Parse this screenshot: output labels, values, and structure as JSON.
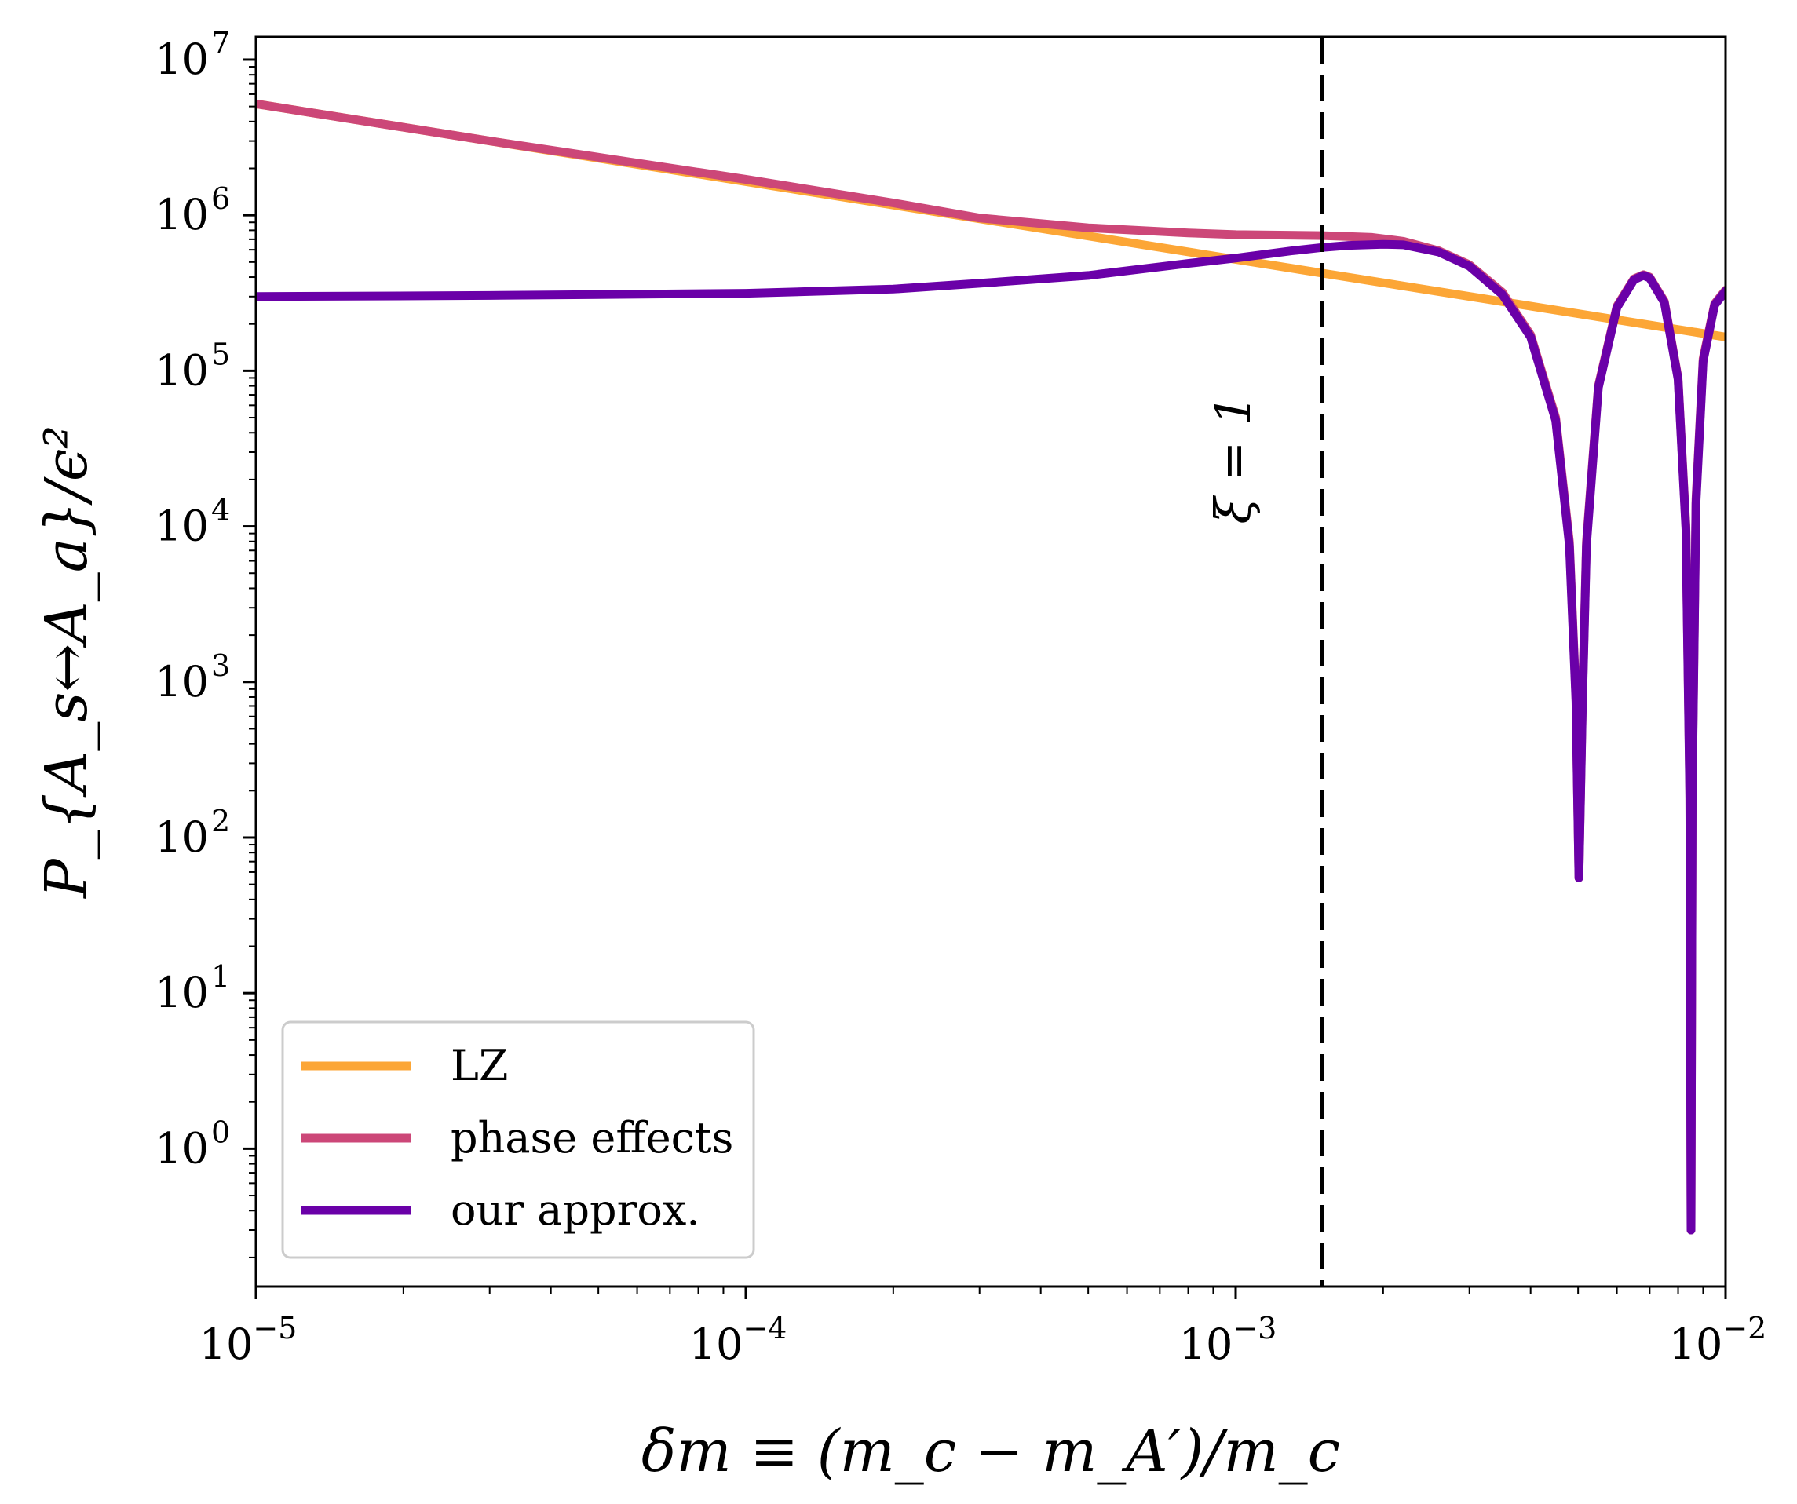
{
  "chart_data": {
    "type": "line",
    "xlabel": "δm ≡ (m_c − m_A′)/m_c",
    "ylabel": "P_{A_s↔A_a}/ϵ²",
    "x_scale": "log",
    "y_scale": "log",
    "xlim": [
      1e-05,
      0.01
    ],
    "ylim": [
      0.13,
      14000000
    ],
    "x_ticks": [
      {
        "value": 1e-05,
        "base": "10",
        "exp": "−5"
      },
      {
        "value": 0.0001,
        "base": "10",
        "exp": "−4"
      },
      {
        "value": 0.001,
        "base": "10",
        "exp": "−3"
      },
      {
        "value": 0.01,
        "base": "10",
        "exp": "−2"
      }
    ],
    "y_ticks": [
      {
        "value": 1,
        "base": "10",
        "exp": "0"
      },
      {
        "value": 10,
        "base": "10",
        "exp": "1"
      },
      {
        "value": 100,
        "base": "10",
        "exp": "2"
      },
      {
        "value": 1000,
        "base": "10",
        "exp": "3"
      },
      {
        "value": 10000,
        "base": "10",
        "exp": "4"
      },
      {
        "value": 100000,
        "base": "10",
        "exp": "5"
      },
      {
        "value": 1000000,
        "base": "10",
        "exp": "6"
      },
      {
        "value": 10000000,
        "base": "10",
        "exp": "7"
      }
    ],
    "grid": false,
    "legend_position": "lower-left",
    "annotation": {
      "text": "ξ = 1",
      "x": 0.0015
    },
    "vline": {
      "x": 0.0015,
      "style": "dashed",
      "color": "#000000"
    },
    "series": [
      {
        "name": "LZ",
        "color": "#fca636",
        "points": [
          [
            1e-05,
            5200000
          ],
          [
            0.001,
            520000
          ],
          [
            0.01,
            165000
          ]
        ]
      },
      {
        "name": "phase effects",
        "color": "#cc4778",
        "points": [
          [
            1e-05,
            5200000
          ],
          [
            3e-05,
            3000000
          ],
          [
            0.0001,
            1700000
          ],
          [
            0.0002,
            1200000
          ],
          [
            0.0003,
            960000
          ],
          [
            0.0005,
            830000
          ],
          [
            0.0008,
            770000
          ],
          [
            0.001,
            750000
          ],
          [
            0.0015,
            740000
          ],
          [
            0.0019,
            720000
          ],
          [
            0.0022,
            680000
          ],
          [
            0.0026,
            590000
          ],
          [
            0.003,
            480000
          ],
          [
            0.0035,
            320000
          ],
          [
            0.004,
            170000
          ],
          [
            0.0045,
            50000
          ],
          [
            0.0048,
            8000
          ],
          [
            0.00495,
            800
          ],
          [
            0.00502,
            55
          ],
          [
            0.0051,
            700
          ],
          [
            0.0052,
            8000
          ],
          [
            0.0055,
            80000
          ],
          [
            0.006,
            260000
          ],
          [
            0.0065,
            390000
          ],
          [
            0.0068,
            415000
          ],
          [
            0.007,
            400000
          ],
          [
            0.0075,
            280000
          ],
          [
            0.008,
            90000
          ],
          [
            0.0083,
            10000
          ],
          [
            0.00845,
            200
          ],
          [
            0.0085,
            0.3
          ],
          [
            0.00855,
            200
          ],
          [
            0.0087,
            15000
          ],
          [
            0.009,
            120000
          ],
          [
            0.0095,
            270000
          ],
          [
            0.01,
            330000
          ]
        ]
      },
      {
        "name": "our approx.",
        "color": "#6a00a8",
        "points": [
          [
            1e-05,
            300000
          ],
          [
            3e-05,
            305000
          ],
          [
            0.0001,
            315000
          ],
          [
            0.0002,
            335000
          ],
          [
            0.0003,
            365000
          ],
          [
            0.0005,
            410000
          ],
          [
            0.0008,
            490000
          ],
          [
            0.001,
            530000
          ],
          [
            0.0013,
            590000
          ],
          [
            0.0015,
            620000
          ],
          [
            0.0017,
            640000
          ],
          [
            0.002,
            650000
          ],
          [
            0.0022,
            645000
          ],
          [
            0.0026,
            580000
          ],
          [
            0.003,
            470000
          ],
          [
            0.0035,
            310000
          ],
          [
            0.004,
            165000
          ],
          [
            0.0045,
            48000
          ],
          [
            0.0048,
            7500
          ],
          [
            0.00495,
            750
          ],
          [
            0.00502,
            55
          ],
          [
            0.0051,
            650
          ],
          [
            0.0052,
            7500
          ],
          [
            0.0055,
            78000
          ],
          [
            0.006,
            255000
          ],
          [
            0.0065,
            385000
          ],
          [
            0.0068,
            410000
          ],
          [
            0.007,
            395000
          ],
          [
            0.0075,
            275000
          ],
          [
            0.008,
            88000
          ],
          [
            0.0083,
            9500
          ],
          [
            0.00845,
            180
          ],
          [
            0.0085,
            0.3
          ],
          [
            0.00855,
            180
          ],
          [
            0.0087,
            14000
          ],
          [
            0.009,
            115000
          ],
          [
            0.0095,
            265000
          ],
          [
            0.01,
            325000
          ]
        ]
      }
    ]
  }
}
